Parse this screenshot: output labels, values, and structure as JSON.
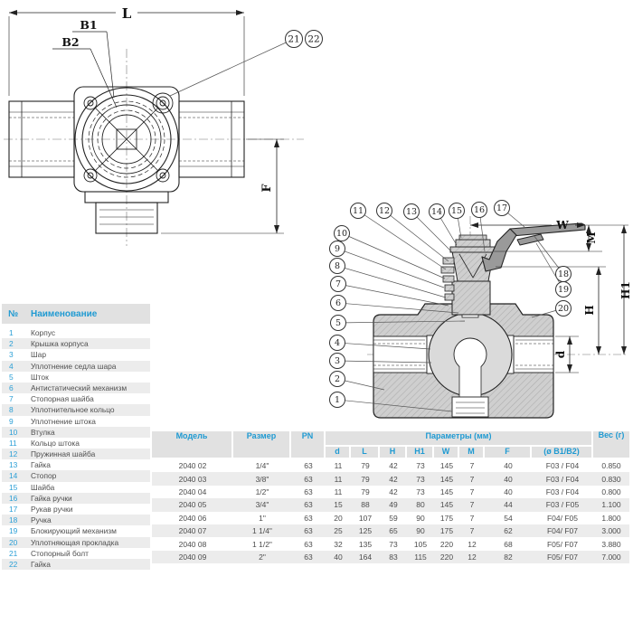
{
  "colors": {
    "accent_blue": "#1f9ad2",
    "table_text": "#4d4d4d",
    "header_bg": "#e1e1e1",
    "row_alt_bg": "#ececec",
    "drawing_line": "#1a1a1a"
  },
  "top_view": {
    "dim_labels": {
      "length": "L",
      "bolt_circle_1": "B1",
      "bolt_circle_2": "B2",
      "height": "F"
    },
    "callouts": [
      "21",
      "22"
    ]
  },
  "section_view": {
    "dim_labels": {
      "width": "W",
      "m": "M",
      "h1": "H1",
      "h": "H",
      "d": "d"
    },
    "callouts": [
      "1",
      "2",
      "3",
      "4",
      "5",
      "6",
      "7",
      "8",
      "9",
      "10",
      "11",
      "12",
      "13",
      "14",
      "15",
      "16",
      "17",
      "18",
      "19",
      "20"
    ]
  },
  "parts_table": {
    "header": {
      "number": "№",
      "name": "Наименование"
    },
    "items": [
      {
        "num": "1",
        "name": "Корпус"
      },
      {
        "num": "2",
        "name": "Крышка корпуса"
      },
      {
        "num": "3",
        "name": "Шар"
      },
      {
        "num": "4",
        "name": "Уплотнение седла шара"
      },
      {
        "num": "5",
        "name": "Шток"
      },
      {
        "num": "6",
        "name": "Антистатический механизм"
      },
      {
        "num": "7",
        "name": "Стопорная шайба"
      },
      {
        "num": "8",
        "name": "Уплотнительное кольцо"
      },
      {
        "num": "9",
        "name": "Уплотнение штока"
      },
      {
        "num": "10",
        "name": "Втулка"
      },
      {
        "num": "11",
        "name": "Кольцо штока"
      },
      {
        "num": "12",
        "name": "Пружинная шайба"
      },
      {
        "num": "13",
        "name": "Гайка"
      },
      {
        "num": "14",
        "name": "Стопор"
      },
      {
        "num": "15",
        "name": "Шайба"
      },
      {
        "num": "16",
        "name": "Гайка ручки"
      },
      {
        "num": "17",
        "name": "Рукав ручки"
      },
      {
        "num": "18",
        "name": "Ручка"
      },
      {
        "num": "19",
        "name": "Блокирующий механизм"
      },
      {
        "num": "20",
        "name": "Уплотняющая прокладка"
      },
      {
        "num": "21",
        "name": "Стопорный болт"
      },
      {
        "num": "22",
        "name": "Гайка"
      }
    ]
  },
  "spec_table": {
    "header": {
      "model": "Модель",
      "size": "Размер",
      "pn": "PN",
      "params_group": "Параметры (мм)",
      "weight": "Вес",
      "weight_unit": "(г)",
      "param_columns": [
        "d",
        "L",
        "H",
        "H1",
        "W",
        "M",
        "F",
        "(ø B1/B2)"
      ]
    },
    "rows": [
      [
        "2040 02",
        "1/4\"",
        "63",
        "11",
        "79",
        "42",
        "73",
        "145",
        "7",
        "40",
        "F03 / F04",
        "0.850"
      ],
      [
        "2040 03",
        "3/8\"",
        "63",
        "11",
        "79",
        "42",
        "73",
        "145",
        "7",
        "40",
        "F03 / F04",
        "0.830"
      ],
      [
        "2040 04",
        "1/2\"",
        "63",
        "11",
        "79",
        "42",
        "73",
        "145",
        "7",
        "40",
        "F03 / F04",
        "0.800"
      ],
      [
        "2040 05",
        "3/4\"",
        "63",
        "15",
        "88",
        "49",
        "80",
        "145",
        "7",
        "44",
        "F03 / F05",
        "1.100"
      ],
      [
        "2040 06",
        "1\"",
        "63",
        "20",
        "107",
        "59",
        "90",
        "175",
        "7",
        "54",
        "F04/ F05",
        "1.800"
      ],
      [
        "2040 07",
        "1 1/4\"",
        "63",
        "25",
        "125",
        "65",
        "90",
        "175",
        "7",
        "62",
        "F04/ F07",
        "3.000"
      ],
      [
        "2040 08",
        "1 1/2\"",
        "63",
        "32",
        "135",
        "73",
        "105",
        "220",
        "12",
        "68",
        "F05/ F07",
        "3.880"
      ],
      [
        "2040 09",
        "2\"",
        "63",
        "40",
        "164",
        "83",
        "115",
        "220",
        "12",
        "82",
        "F05/ F07",
        "7.000"
      ]
    ]
  }
}
